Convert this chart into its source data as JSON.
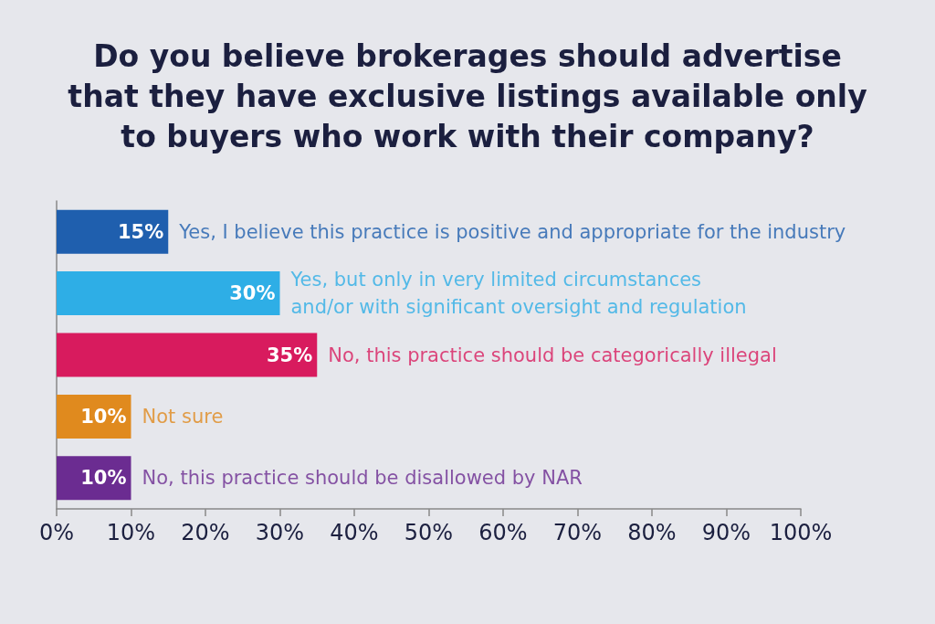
{
  "chart_data": {
    "type": "bar",
    "orientation": "horizontal",
    "title": "Do you believe brokerages should advertise\nthat they have exclusive listings available only\nto buyers who work with their company?",
    "categories": [
      "Yes, I believe this practice is positive and appropriate for the industry",
      "Yes, but only in very limited circumstances\nand/or with significant oversight and regulation",
      "No, this practice should be categorically illegal",
      "Not sure",
      "No, this practice should be disallowed by NAR"
    ],
    "values": [
      15,
      30,
      35,
      10,
      10
    ],
    "colors": [
      "#1f5fae",
      "#2eaee6",
      "#d81b5e",
      "#e08a1e",
      "#6b2c91"
    ],
    "value_labels": [
      "15%",
      "30%",
      "35%",
      "10%",
      "10%"
    ],
    "xlim": [
      0,
      100
    ],
    "xticks": [
      {
        "value": 0,
        "label": "0%"
      },
      {
        "value": 10,
        "label": "10%"
      },
      {
        "value": 20,
        "label": "20%"
      },
      {
        "value": 30,
        "label": "30%"
      },
      {
        "value": 40,
        "label": "40%"
      },
      {
        "value": 50,
        "label": "50%"
      },
      {
        "value": 60,
        "label": "60%"
      },
      {
        "value": 70,
        "label": "70%"
      },
      {
        "value": 80,
        "label": "80%"
      },
      {
        "value": 90,
        "label": "90%"
      },
      {
        "value": 100,
        "label": "100%"
      }
    ],
    "grid": false
  }
}
